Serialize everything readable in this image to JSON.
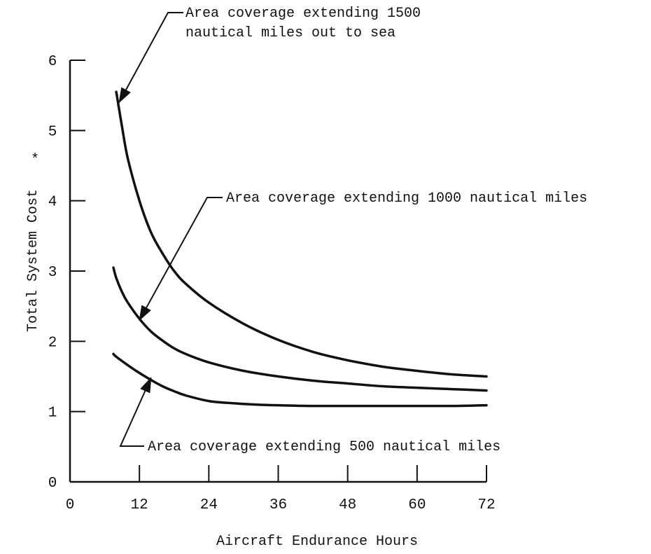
{
  "chart_data": {
    "type": "line",
    "xlabel": "Aircraft Endurance Hours",
    "ylabel": "Total System Cost",
    "ylabel_marker": "*",
    "xlim": [
      0,
      72
    ],
    "ylim": [
      0,
      6
    ],
    "x_ticks": [
      "0",
      "12",
      "24",
      "36",
      "48",
      "60",
      "72"
    ],
    "y_ticks": [
      "0",
      "1",
      "2",
      "3",
      "4",
      "5",
      "6"
    ],
    "grid": false,
    "series": [
      {
        "name": "Area coverage extending 1500 nautical miles out to sea",
        "x": [
          8,
          9,
          10,
          12,
          14,
          16,
          18,
          20,
          24,
          30,
          36,
          42,
          48,
          54,
          60,
          66,
          72
        ],
        "y": [
          5.55,
          5.05,
          4.6,
          4.0,
          3.55,
          3.25,
          3.0,
          2.82,
          2.55,
          2.25,
          2.02,
          1.85,
          1.73,
          1.64,
          1.58,
          1.53,
          1.5
        ]
      },
      {
        "name": "Area coverage extending 1000 nautical miles",
        "x": [
          7.5,
          8,
          9,
          10,
          12,
          14,
          16,
          18,
          20,
          24,
          30,
          36,
          42,
          48,
          54,
          60,
          66,
          72
        ],
        "y": [
          3.05,
          2.9,
          2.7,
          2.55,
          2.32,
          2.14,
          2.01,
          1.9,
          1.82,
          1.7,
          1.58,
          1.5,
          1.44,
          1.4,
          1.36,
          1.34,
          1.32,
          1.3
        ]
      },
      {
        "name": "Area coverage extending 500 nautical miles",
        "x": [
          7.5,
          8,
          10,
          12,
          14,
          16,
          18,
          20,
          24,
          28,
          32,
          36,
          42,
          48,
          54,
          60,
          66,
          72
        ],
        "y": [
          1.82,
          1.78,
          1.66,
          1.55,
          1.45,
          1.36,
          1.29,
          1.23,
          1.15,
          1.12,
          1.1,
          1.09,
          1.08,
          1.08,
          1.08,
          1.08,
          1.08,
          1.09
        ]
      }
    ],
    "annotations": [
      {
        "lines": [
          "Area coverage extending 1500",
          "nautical miles out to sea"
        ],
        "target_series": 0,
        "target": [
          8.5,
          5.4
        ]
      },
      {
        "lines": [
          "Area coverage extending 1000 nautical miles"
        ],
        "target_series": 1,
        "target": [
          12,
          2.3
        ]
      },
      {
        "lines": [
          "Area coverage extending 500 nautical miles"
        ],
        "target_series": 2,
        "target": [
          14,
          1.48
        ]
      }
    ]
  }
}
